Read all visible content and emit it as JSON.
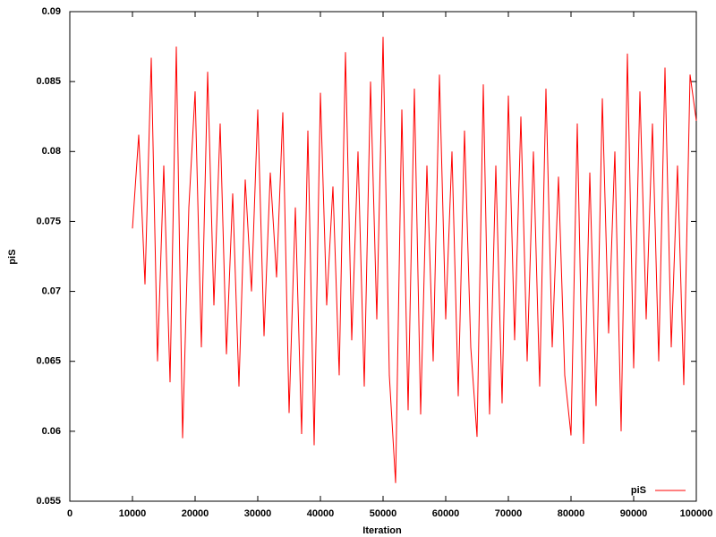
{
  "chart_data": {
    "type": "line",
    "x_label": "Iteration",
    "y_label": "piS",
    "x": [
      10000,
      11000,
      12000,
      13000,
      14000,
      15000,
      16000,
      17000,
      18000,
      19000,
      20000,
      21000,
      22000,
      23000,
      24000,
      25000,
      26000,
      27000,
      28000,
      29000,
      30000,
      31000,
      32000,
      33000,
      34000,
      35000,
      36000,
      37000,
      38000,
      39000,
      40000,
      41000,
      42000,
      43000,
      44000,
      45000,
      46000,
      47000,
      48000,
      49000,
      50000,
      51000,
      52000,
      53000,
      54000,
      55000,
      56000,
      57000,
      58000,
      59000,
      60000,
      61000,
      62000,
      63000,
      64000,
      65000,
      66000,
      67000,
      68000,
      69000,
      70000,
      71000,
      72000,
      73000,
      74000,
      75000,
      76000,
      77000,
      78000,
      79000,
      80000,
      81000,
      82000,
      83000,
      84000,
      85000,
      86000,
      87000,
      88000,
      89000,
      90000,
      91000,
      92000,
      93000,
      94000,
      95000,
      96000,
      97000,
      98000,
      99000,
      100000
    ],
    "series": [
      {
        "name": "piS",
        "color": "#ff0000",
        "values": [
          0.0745,
          0.0812,
          0.0705,
          0.0867,
          0.065,
          0.079,
          0.0635,
          0.0875,
          0.0595,
          0.076,
          0.0843,
          0.066,
          0.0857,
          0.069,
          0.082,
          0.0655,
          0.077,
          0.0632,
          0.078,
          0.07,
          0.083,
          0.0668,
          0.0785,
          0.071,
          0.0828,
          0.0613,
          0.076,
          0.0598,
          0.0815,
          0.059,
          0.0842,
          0.069,
          0.0775,
          0.064,
          0.0871,
          0.0665,
          0.08,
          0.0632,
          0.085,
          0.068,
          0.0882,
          0.064,
          0.0563,
          0.083,
          0.0615,
          0.0845,
          0.0612,
          0.079,
          0.065,
          0.0855,
          0.068,
          0.08,
          0.0625,
          0.0815,
          0.066,
          0.0596,
          0.0848,
          0.0612,
          0.079,
          0.062,
          0.084,
          0.0665,
          0.0825,
          0.065,
          0.08,
          0.0632,
          0.0845,
          0.066,
          0.0782,
          0.064,
          0.0597,
          0.082,
          0.0591,
          0.0785,
          0.0618,
          0.0838,
          0.067,
          0.08,
          0.06,
          0.087,
          0.0645,
          0.0843,
          0.068,
          0.082,
          0.065,
          0.086,
          0.066,
          0.079,
          0.0633,
          0.0855,
          0.0822
        ]
      }
    ],
    "xlim": [
      0,
      100000
    ],
    "xticks": [
      0,
      10000,
      20000,
      30000,
      40000,
      50000,
      60000,
      70000,
      80000,
      90000,
      100000
    ],
    "ylim": [
      0.055,
      0.09
    ],
    "yticks": [
      0.055,
      0.06,
      0.065,
      0.07,
      0.075,
      0.08,
      0.085,
      0.09
    ],
    "grid": false,
    "legend": "bottom-right"
  }
}
